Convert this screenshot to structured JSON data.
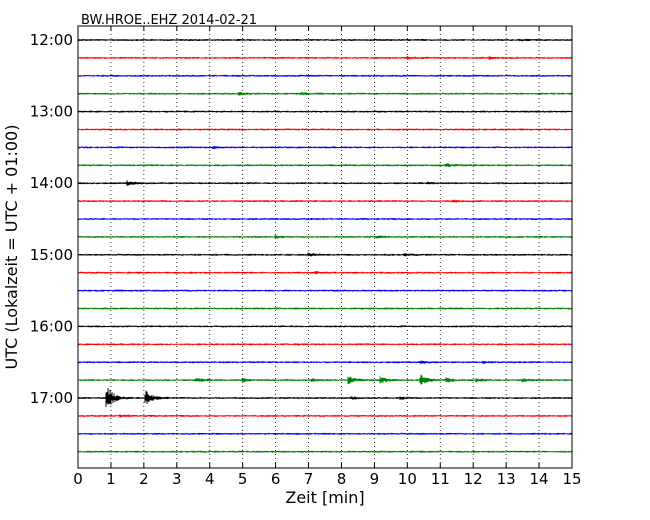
{
  "chart_data": {
    "type": "line",
    "title": "BW.HROE..EHZ 2014-02-21",
    "xlabel": "Zeit  [min]",
    "ylabel": "UTC (Lokalzeit = UTC + 01:00)",
    "xlim": [
      0,
      15
    ],
    "x_ticks": [
      "0",
      "1",
      "2",
      "3",
      "4",
      "5",
      "6",
      "7",
      "8",
      "9",
      "10",
      "11",
      "12",
      "13",
      "14",
      "15"
    ],
    "y_ticks": [
      "12:00",
      "13:00",
      "14:00",
      "15:00",
      "16:00",
      "17:00"
    ],
    "trace_interval_min": 15,
    "trace_colors": [
      "#000000",
      "#ff0000",
      "#0000ff",
      "#008000"
    ],
    "grid": "vertical dotted",
    "series": [
      {
        "start": "12:00",
        "color": "#000000",
        "events": [
          {
            "x": 13.4,
            "amp": 0.6
          }
        ]
      },
      {
        "start": "12:15",
        "color": "#ff0000",
        "events": [
          {
            "x": 10.0,
            "amp": 1.2
          },
          {
            "x": 12.5,
            "amp": 0.8
          }
        ]
      },
      {
        "start": "12:30",
        "color": "#0000ff",
        "events": []
      },
      {
        "start": "12:45",
        "color": "#008000",
        "events": [
          {
            "x": 4.9,
            "amp": 1.2
          },
          {
            "x": 6.8,
            "amp": 1.0
          }
        ]
      },
      {
        "start": "13:00",
        "color": "#000000",
        "events": []
      },
      {
        "start": "13:15",
        "color": "#ff0000",
        "events": []
      },
      {
        "start": "13:30",
        "color": "#0000ff",
        "events": [
          {
            "x": 4.1,
            "amp": 0.7
          }
        ]
      },
      {
        "start": "13:45",
        "color": "#008000",
        "events": [
          {
            "x": 11.2,
            "amp": 1.5
          }
        ]
      },
      {
        "start": "14:00",
        "color": "#000000",
        "events": [
          {
            "x": 1.5,
            "amp": 2.0
          },
          {
            "x": 10.6,
            "amp": 0.7
          }
        ]
      },
      {
        "start": "14:15",
        "color": "#ff0000",
        "events": [
          {
            "x": 11.4,
            "amp": 0.6
          }
        ]
      },
      {
        "start": "14:30",
        "color": "#0000ff",
        "events": []
      },
      {
        "start": "14:45",
        "color": "#008000",
        "events": [
          {
            "x": 6.0,
            "amp": 0.9
          },
          {
            "x": 9.1,
            "amp": 1.2
          }
        ]
      },
      {
        "start": "15:00",
        "color": "#000000",
        "events": [
          {
            "x": 7.0,
            "amp": 1.3
          },
          {
            "x": 9.9,
            "amp": 0.8
          }
        ]
      },
      {
        "start": "15:15",
        "color": "#ff0000",
        "events": [
          {
            "x": 7.2,
            "amp": 0.8
          }
        ]
      },
      {
        "start": "15:30",
        "color": "#0000ff",
        "events": []
      },
      {
        "start": "15:45",
        "color": "#008000",
        "events": []
      },
      {
        "start": "16:00",
        "color": "#000000",
        "events": []
      },
      {
        "start": "16:15",
        "color": "#ff0000",
        "events": [
          {
            "x": 6.6,
            "amp": 0.6
          }
        ]
      },
      {
        "start": "16:30",
        "color": "#0000ff",
        "events": [
          {
            "x": 10.4,
            "amp": 1.0
          },
          {
            "x": 12.3,
            "amp": 0.7
          }
        ]
      },
      {
        "start": "16:45",
        "color": "#008000",
        "events": [
          {
            "x": 3.6,
            "amp": 2.0
          },
          {
            "x": 5.0,
            "amp": 1.6
          },
          {
            "x": 7.1,
            "amp": 1.0
          },
          {
            "x": 8.2,
            "amp": 3.6
          },
          {
            "x": 9.2,
            "amp": 3.0
          },
          {
            "x": 10.4,
            "amp": 5.0
          },
          {
            "x": 11.2,
            "amp": 1.8
          },
          {
            "x": 12.1,
            "amp": 1.5
          },
          {
            "x": 13.5,
            "amp": 1.2
          }
        ]
      },
      {
        "start": "17:00",
        "color": "#000000",
        "events": [
          {
            "x": 0.85,
            "amp": 14.0
          },
          {
            "x": 2.05,
            "amp": 7.0
          },
          {
            "x": 8.3,
            "amp": 1.3
          },
          {
            "x": 9.8,
            "amp": 1.3
          }
        ]
      },
      {
        "start": "17:15",
        "color": "#ff0000",
        "events": [
          {
            "x": 1.3,
            "amp": 1.0
          }
        ]
      },
      {
        "start": "17:30",
        "color": "#0000ff",
        "events": []
      },
      {
        "start": "17:45",
        "color": "#008000",
        "events": []
      }
    ]
  }
}
